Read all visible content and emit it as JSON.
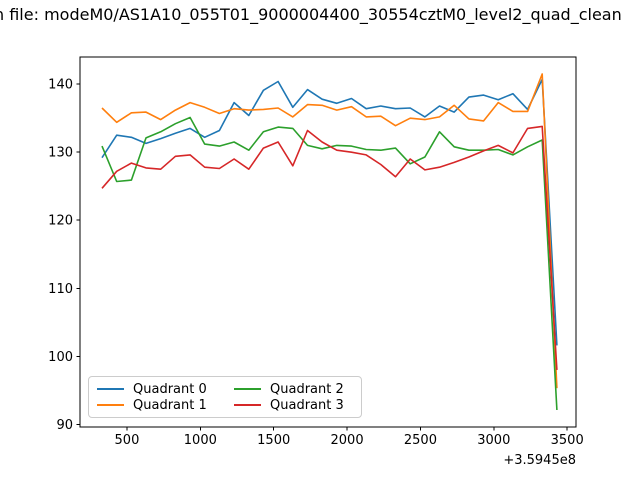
{
  "title": {
    "clipped_lead_char": "n",
    "visible_text": " file: modeM0/AS1A10_055T01_9000004400_30554cztM0_level2_quad_clean"
  },
  "chart_data": {
    "type": "line",
    "title": "",
    "xlabel": "",
    "ylabel": "",
    "x_offset_label": "+3.5945e8",
    "xlim": [
      180,
      3560
    ],
    "ylim": [
      89.6,
      144.0
    ],
    "x_ticks": [
      500,
      1000,
      1500,
      2000,
      2500,
      3000,
      3500
    ],
    "y_ticks": [
      90,
      100,
      110,
      120,
      130,
      140
    ],
    "grid": false,
    "legend_position": "lower left",
    "x": [
      330,
      430,
      530,
      630,
      730,
      830,
      930,
      1030,
      1130,
      1230,
      1330,
      1430,
      1530,
      1630,
      1730,
      1830,
      1930,
      2030,
      2130,
      2230,
      2330,
      2430,
      2530,
      2630,
      2730,
      2830,
      2930,
      3030,
      3130,
      3230,
      3330,
      3430
    ],
    "series": [
      {
        "name": "Quadrant 0",
        "color": "#1f77b4",
        "values": [
          129.2,
          132.5,
          132.2,
          131.3,
          132.0,
          132.8,
          133.5,
          132.2,
          133.2,
          137.3,
          135.4,
          139.1,
          140.4,
          136.6,
          139.2,
          137.8,
          137.2,
          137.9,
          136.4,
          136.8,
          136.4,
          136.5,
          135.2,
          136.8,
          135.9,
          138.1,
          138.4,
          137.7,
          138.6,
          136.3,
          140.7,
          101.6
        ]
      },
      {
        "name": "Quadrant 1",
        "color": "#ff7f0e",
        "values": [
          136.5,
          134.4,
          135.8,
          135.9,
          134.8,
          136.2,
          137.3,
          136.6,
          135.7,
          136.4,
          136.2,
          136.3,
          136.5,
          135.2,
          137.0,
          136.9,
          136.2,
          136.7,
          135.2,
          135.3,
          133.9,
          135.0,
          134.8,
          135.2,
          136.9,
          134.9,
          134.6,
          137.3,
          136.0,
          136.0,
          141.5,
          95.3
        ]
      },
      {
        "name": "Quadrant 2",
        "color": "#2ca02c",
        "values": [
          130.9,
          125.7,
          125.9,
          132.1,
          133.0,
          134.2,
          135.1,
          131.2,
          130.9,
          131.5,
          130.3,
          133.0,
          133.7,
          133.5,
          131.0,
          130.5,
          131.0,
          130.9,
          130.4,
          130.3,
          130.6,
          128.3,
          129.3,
          133.0,
          130.8,
          130.3,
          130.3,
          130.4,
          129.6,
          130.8,
          131.8,
          92.1
        ]
      },
      {
        "name": "Quadrant 3",
        "color": "#d62728",
        "values": [
          124.7,
          127.2,
          128.4,
          127.7,
          127.5,
          129.4,
          129.6,
          127.8,
          127.6,
          129.0,
          127.5,
          130.6,
          131.5,
          128.0,
          133.2,
          131.5,
          130.3,
          130.0,
          129.6,
          128.2,
          126.4,
          129.0,
          127.4,
          127.8,
          128.5,
          129.3,
          130.2,
          131.0,
          129.9,
          133.5,
          133.8,
          98.0
        ]
      }
    ]
  }
}
